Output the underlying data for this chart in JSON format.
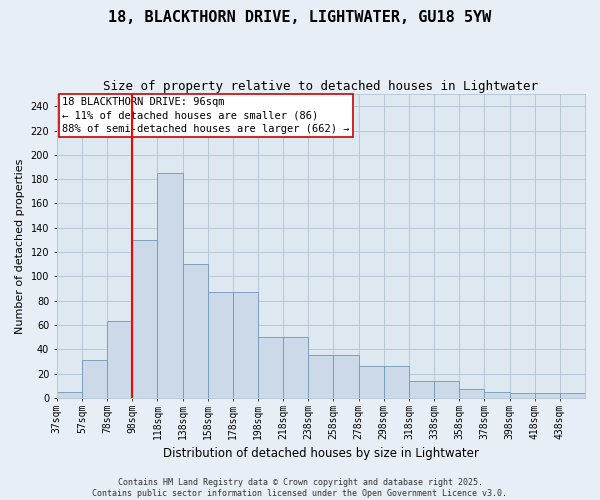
{
  "title": "18, BLACKTHORN DRIVE, LIGHTWATER, GU18 5YW",
  "subtitle": "Size of property relative to detached houses in Lightwater",
  "xlabel": "Distribution of detached houses by size in Lightwater",
  "ylabel": "Number of detached properties",
  "bin_labels": [
    "37sqm",
    "57sqm",
    "78sqm",
    "98sqm",
    "118sqm",
    "138sqm",
    "158sqm",
    "178sqm",
    "198sqm",
    "218sqm",
    "238sqm",
    "258sqm",
    "278sqm",
    "298sqm",
    "318sqm",
    "338sqm",
    "358sqm",
    "378sqm",
    "398sqm",
    "418sqm",
    "438sqm"
  ],
  "bar_values": [
    5,
    31,
    63,
    130,
    185,
    110,
    87,
    87,
    50,
    50,
    35,
    35,
    26,
    26,
    14,
    14,
    7,
    5,
    4,
    4,
    4
  ],
  "bar_color": "#ccd9e8",
  "bar_edge_color": "#7098b8",
  "grid_color": "#b8c8d8",
  "plot_bg_color": "#dde8f0",
  "outer_bg_color": "#e8eef5",
  "annotation_text": "18 BLACKTHORN DRIVE: 96sqm\n← 11% of detached houses are smaller (86)\n88% of semi-detached houses are larger (662) →",
  "annotation_box_color": "#ffffff",
  "annotation_box_edge": "#cc0000",
  "ylim": [
    0,
    250
  ],
  "yticks": [
    0,
    20,
    40,
    60,
    80,
    100,
    120,
    140,
    160,
    180,
    200,
    220,
    240
  ],
  "footer_text": "Contains HM Land Registry data © Crown copyright and database right 2025.\nContains public sector information licensed under the Open Government Licence v3.0.",
  "title_fontsize": 11,
  "subtitle_fontsize": 9,
  "xlabel_fontsize": 8.5,
  "ylabel_fontsize": 8,
  "tick_fontsize": 7,
  "annotation_fontsize": 7.5,
  "footer_fontsize": 6
}
